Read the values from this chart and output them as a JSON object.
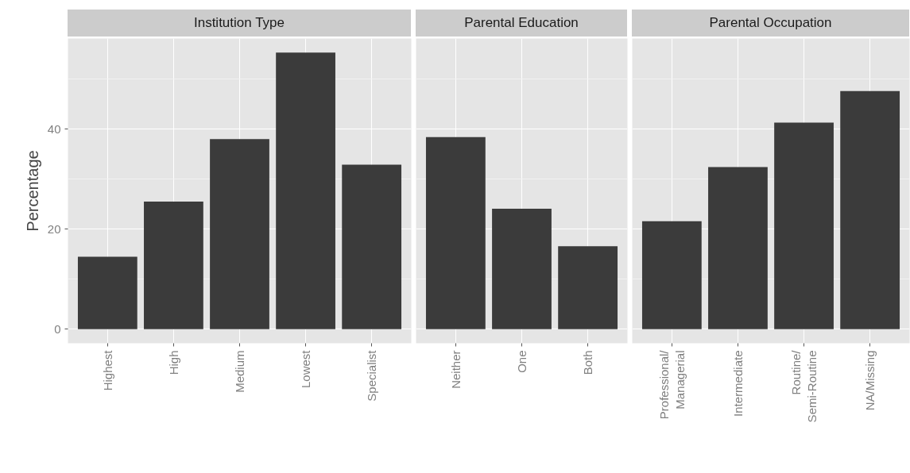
{
  "chart_data": [
    {
      "type": "bar",
      "title": "Institution Type",
      "ylabel": "Percentage",
      "categories": [
        "Highest",
        "High",
        "Medium",
        "Lowest",
        "Specialist"
      ],
      "values": [
        14.5,
        25.5,
        38.0,
        55.3,
        32.9
      ],
      "color": "#3b3b3b",
      "ylim": [
        -2.8,
        58.1
      ],
      "yticks": [
        0,
        20,
        40
      ],
      "grid": true
    },
    {
      "type": "bar",
      "title": "Parental Education",
      "categories": [
        "Neither",
        "One",
        "Both"
      ],
      "values": [
        38.4,
        24.1,
        16.6
      ],
      "color": "#3b3b3b",
      "ylim": [
        -2.8,
        58.1
      ],
      "yticks": [
        0,
        20,
        40
      ],
      "grid": true,
      "tick_labels": "x"
    },
    {
      "type": "bar",
      "title": "Parental Occupation",
      "categories": [
        "Professional/\nManagerial",
        "Intermediate",
        "Routine/\nSemi-Routine",
        "NA/Missing"
      ],
      "values": [
        21.6,
        32.4,
        41.3,
        47.6
      ],
      "color": "#3b3b3b",
      "ylim": [
        -2.8,
        58.1
      ],
      "yticks": [
        0,
        20,
        40
      ],
      "grid": true,
      "tick_labels": "x"
    }
  ]
}
